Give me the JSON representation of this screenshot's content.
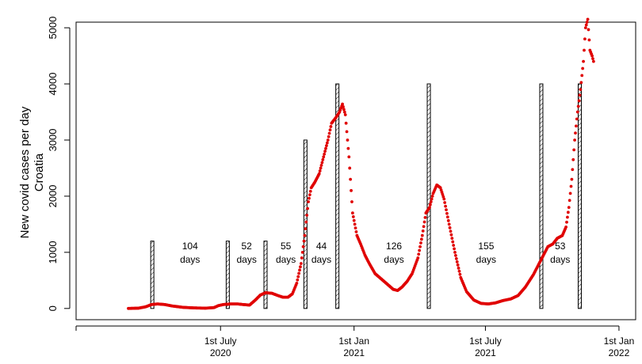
{
  "chart_data": {
    "type": "scatter",
    "title": "",
    "ylabel_line1": "New covid cases per day",
    "ylabel_line2": "Croatia",
    "xlabel": "",
    "ylim": [
      -200,
      5100
    ],
    "yticks": [
      0,
      1000,
      2000,
      3000,
      4000,
      5000
    ],
    "xlim": [
      "2019-12-15",
      "2022-01-24"
    ],
    "xticks": [
      {
        "date": "2020-07-01",
        "line1": "1st July",
        "line2": "2020"
      },
      {
        "date": "2021-01-01",
        "line1": "1st Jan",
        "line2": "2021"
      },
      {
        "date": "2021-07-01",
        "line1": "1st July",
        "line2": "2021"
      },
      {
        "date": "2022-01-01",
        "line1": "1st Jan",
        "line2": "2022"
      }
    ],
    "point_color": "#e00000",
    "series": [
      {
        "points": [
          [
            "2020-02-25",
            0
          ],
          [
            "2020-03-10",
            5
          ],
          [
            "2020-03-20",
            30
          ],
          [
            "2020-03-28",
            70
          ],
          [
            "2020-04-05",
            80
          ],
          [
            "2020-04-15",
            70
          ],
          [
            "2020-04-25",
            45
          ],
          [
            "2020-05-10",
            20
          ],
          [
            "2020-05-25",
            10
          ],
          [
            "2020-06-10",
            5
          ],
          [
            "2020-06-22",
            15
          ],
          [
            "2020-06-28",
            50
          ],
          [
            "2020-07-05",
            70
          ],
          [
            "2020-07-15",
            80
          ],
          [
            "2020-07-25",
            80
          ],
          [
            "2020-08-01",
            70
          ],
          [
            "2020-08-10",
            60
          ],
          [
            "2020-08-18",
            150
          ],
          [
            "2020-08-25",
            240
          ],
          [
            "2020-09-01",
            280
          ],
          [
            "2020-09-10",
            270
          ],
          [
            "2020-09-18",
            230
          ],
          [
            "2020-09-25",
            200
          ],
          [
            "2020-10-02",
            200
          ],
          [
            "2020-10-08",
            260
          ],
          [
            "2020-10-14",
            450
          ],
          [
            "2020-10-20",
            800
          ],
          [
            "2020-10-25",
            1300
          ],
          [
            "2020-10-30",
            1900
          ],
          [
            "2020-11-03",
            2150
          ],
          [
            "2020-11-08",
            2250
          ],
          [
            "2020-11-14",
            2400
          ],
          [
            "2020-11-20",
            2700
          ],
          [
            "2020-11-26",
            3000
          ],
          [
            "2020-12-01",
            3300
          ],
          [
            "2020-12-07",
            3400
          ],
          [
            "2020-12-12",
            3500
          ],
          [
            "2020-12-16",
            3640
          ],
          [
            "2020-12-20",
            3450
          ],
          [
            "2020-12-25",
            2700
          ],
          [
            "2020-12-30",
            1700
          ],
          [
            "2021-01-05",
            1300
          ],
          [
            "2021-01-10",
            1150
          ],
          [
            "2021-01-16",
            950
          ],
          [
            "2021-01-22",
            800
          ],
          [
            "2021-01-30",
            620
          ],
          [
            "2021-02-08",
            520
          ],
          [
            "2021-02-16",
            430
          ],
          [
            "2021-02-24",
            340
          ],
          [
            "2021-03-02",
            320
          ],
          [
            "2021-03-08",
            380
          ],
          [
            "2021-03-15",
            480
          ],
          [
            "2021-03-22",
            620
          ],
          [
            "2021-03-30",
            900
          ],
          [
            "2021-04-05",
            1300
          ],
          [
            "2021-04-10",
            1700
          ],
          [
            "2021-04-15",
            1800
          ],
          [
            "2021-04-20",
            2050
          ],
          [
            "2021-04-25",
            2200
          ],
          [
            "2021-04-30",
            2150
          ],
          [
            "2021-05-05",
            1950
          ],
          [
            "2021-05-12",
            1500
          ],
          [
            "2021-05-20",
            1000
          ],
          [
            "2021-05-28",
            550
          ],
          [
            "2021-06-05",
            300
          ],
          [
            "2021-06-15",
            150
          ],
          [
            "2021-06-25",
            90
          ],
          [
            "2021-07-05",
            80
          ],
          [
            "2021-07-15",
            100
          ],
          [
            "2021-07-25",
            140
          ],
          [
            "2021-08-05",
            170
          ],
          [
            "2021-08-15",
            230
          ],
          [
            "2021-08-25",
            380
          ],
          [
            "2021-09-05",
            600
          ],
          [
            "2021-09-15",
            850
          ],
          [
            "2021-09-25",
            1100
          ],
          [
            "2021-10-02",
            1150
          ],
          [
            "2021-10-08",
            1250
          ],
          [
            "2021-10-15",
            1300
          ],
          [
            "2021-10-20",
            1450
          ],
          [
            "2021-10-24",
            1800
          ],
          [
            "2021-10-28",
            2300
          ],
          [
            "2021-11-01",
            3000
          ],
          [
            "2021-11-05",
            3500
          ],
          [
            "2021-11-09",
            3900
          ],
          [
            "2021-11-13",
            4400
          ],
          [
            "2021-11-16",
            5000
          ],
          [
            "2021-11-19",
            5150
          ],
          [
            "2021-11-22",
            4600
          ],
          [
            "2021-11-25",
            4500
          ],
          [
            "2021-11-27",
            4400
          ]
        ]
      }
    ],
    "rectangles": [
      {
        "date": "2020-03-29",
        "height": 1200
      },
      {
        "date": "2020-07-11",
        "height": 1200
      },
      {
        "date": "2020-09-01",
        "height": 1200
      },
      {
        "date": "2020-10-26",
        "height": 3000
      },
      {
        "date": "2020-12-09",
        "height": 4000
      },
      {
        "date": "2021-04-14",
        "height": 4000
      },
      {
        "date": "2021-09-16",
        "height": 4000
      },
      {
        "date": "2021-11-08",
        "height": 4000
      }
    ],
    "annotations": [
      {
        "date": "2020-05-20",
        "value": 1000,
        "line1": "104",
        "line2": "days"
      },
      {
        "date": "2020-08-06",
        "value": 1000,
        "line1": "52",
        "line2": "days"
      },
      {
        "date": "2020-09-29",
        "value": 1000,
        "line1": "55",
        "line2": "days"
      },
      {
        "date": "2020-11-17",
        "value": 1000,
        "line1": "44",
        "line2": "days"
      },
      {
        "date": "2021-02-25",
        "value": 1000,
        "line1": "126",
        "line2": "days"
      },
      {
        "date": "2021-07-02",
        "value": 1000,
        "line1": "155",
        "line2": "days"
      },
      {
        "date": "2021-10-12",
        "value": 1000,
        "line1": "53",
        "line2": "days"
      }
    ]
  }
}
